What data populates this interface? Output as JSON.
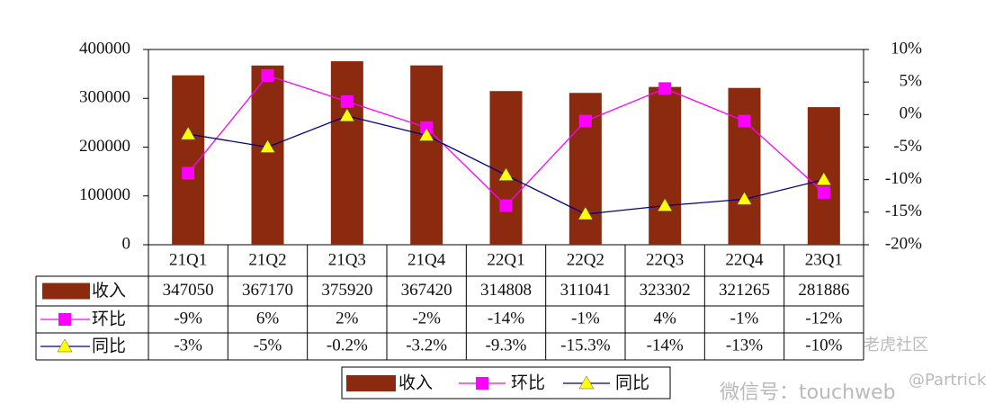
{
  "chart_data": {
    "type": "bar-line",
    "categories": [
      "21Q1",
      "21Q2",
      "21Q3",
      "21Q4",
      "22Q1",
      "22Q2",
      "22Q3",
      "22Q4",
      "23Q1"
    ],
    "series": [
      {
        "name": "收入",
        "type": "bar",
        "color": "#8b2a0e",
        "values": [
          347050,
          367170,
          375920,
          367420,
          314808,
          311041,
          323302,
          321265,
          281886
        ]
      },
      {
        "name": "环比",
        "type": "line",
        "axis": "y2",
        "color": "#ff00ff",
        "marker": "square",
        "values": [
          -9,
          6,
          2,
          -2,
          -14,
          -1,
          4,
          -1,
          -12
        ],
        "value_labels": [
          "-9%",
          "6%",
          "2%",
          "-2%",
          "-14%",
          "-1%",
          "4%",
          "-1%",
          "-12%"
        ]
      },
      {
        "name": "同比",
        "type": "line",
        "axis": "y2",
        "color": "#000080",
        "marker_color": "#ffff00",
        "marker": "triangle",
        "values": [
          -3,
          -5,
          -0.2,
          -3.2,
          -9.3,
          -15.3,
          -14,
          -13,
          -10
        ],
        "value_labels": [
          "-3%",
          "-5%",
          "-0.2%",
          "-3.2%",
          "-9.3%",
          "-15.3%",
          "-14%",
          "-13%",
          "-10%"
        ]
      }
    ],
    "ylim": [
      0,
      400000
    ],
    "yticks": [
      0,
      100000,
      200000,
      300000,
      400000
    ],
    "y2lim": [
      -20,
      10
    ],
    "y2ticks": [
      {
        "value": -20,
        "label": "-20%"
      },
      {
        "value": -15,
        "label": "-15%"
      },
      {
        "value": -10,
        "label": "-10%"
      },
      {
        "value": -5,
        "label": "-5%"
      },
      {
        "value": 0,
        "label": "0%"
      },
      {
        "value": 5,
        "label": "5%"
      },
      {
        "value": 10,
        "label": "10%"
      }
    ],
    "watermarks": [
      "老虎社区",
      "微信号：touchweb",
      "@Partrick"
    ]
  }
}
